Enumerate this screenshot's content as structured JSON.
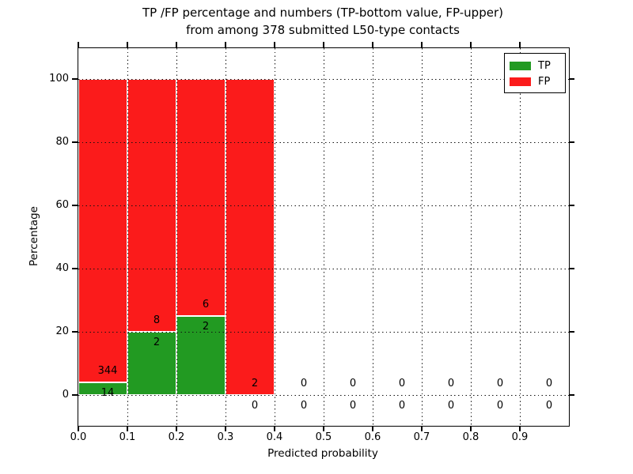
{
  "title_line1": "TP /FP percentage and numbers (TP-bottom value, FP-upper)",
  "title_line2": "from among 378 submitted L50-type contacts",
  "axes": {
    "xlabel": "Predicted probability",
    "ylabel": "Percentage"
  },
  "legend": {
    "tp_label": "TP",
    "fp_label": "FP"
  },
  "colors": {
    "tp_green": "#229a22",
    "fp_red": "#fb1b1b",
    "frame": "#000000",
    "grid": "#111111"
  },
  "chart_data": {
    "type": "bar",
    "stacked": true,
    "normalized": "percent of bin total",
    "title": "TP /FP percentage and numbers (TP-bottom value, FP-upper) from among 378 submitted L50-type contacts",
    "xlabel": "Predicted probability",
    "ylabel": "Percentage",
    "xlim": [
      0.0,
      1.0
    ],
    "ylim": [
      -10,
      110
    ],
    "grid": {
      "visible": true,
      "linestyle": "dotted",
      "color": "#000000"
    },
    "legend_position": "upper right",
    "total_contacts": 378,
    "bin_width": 0.1,
    "bin_starts": [
      0.0,
      0.1,
      0.2,
      0.3,
      0.4,
      0.5,
      0.6,
      0.7,
      0.8,
      0.9
    ],
    "series": [
      {
        "name": "TP",
        "color": "#229a22",
        "counts": [
          14,
          2,
          2,
          0,
          0,
          0,
          0,
          0,
          0,
          0
        ],
        "percent": [
          3.9,
          20,
          25,
          0,
          0,
          0,
          0,
          0,
          0,
          0
        ]
      },
      {
        "name": "FP",
        "color": "#fb1b1b",
        "counts": [
          344,
          8,
          6,
          2,
          0,
          0,
          0,
          0,
          0,
          0
        ],
        "percent": [
          96.1,
          80,
          75,
          100,
          0,
          0,
          0,
          0,
          0,
          0
        ]
      }
    ],
    "x_ticks": {
      "values": [
        0.0,
        0.1,
        0.2,
        0.3,
        0.4,
        0.5,
        0.6,
        0.7,
        0.8,
        0.9
      ],
      "labels": [
        "0.0",
        "0.1",
        "0.2",
        "0.3",
        "0.4",
        "0.5",
        "0.6",
        "0.7",
        "0.8",
        "0.9"
      ]
    },
    "y_ticks": {
      "values": [
        0,
        20,
        40,
        60,
        80,
        100
      ],
      "labels": [
        "0",
        "20",
        "40",
        "60",
        "80",
        "100"
      ]
    }
  }
}
